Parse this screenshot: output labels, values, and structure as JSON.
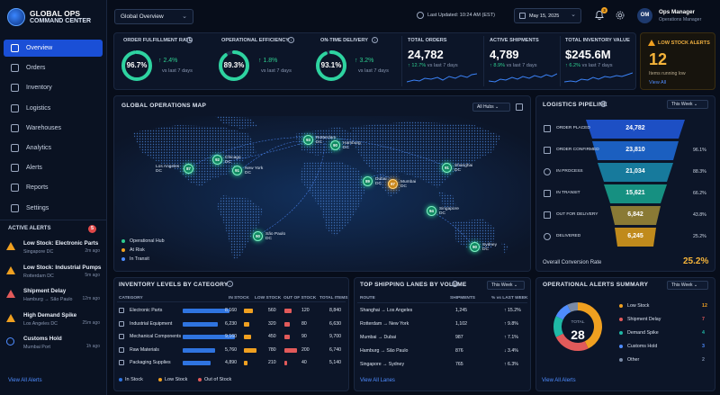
{
  "brand": {
    "line1": "GLOBAL OPS",
    "line2": "COMMAND CENTER"
  },
  "nav": [
    {
      "label": "Overview",
      "icon": "grid-icon"
    },
    {
      "label": "Orders",
      "icon": "box-icon"
    },
    {
      "label": "Inventory",
      "icon": "boxes-icon"
    },
    {
      "label": "Logistics",
      "icon": "route-icon"
    },
    {
      "label": "Warehouses",
      "icon": "warehouse-icon"
    },
    {
      "label": "Analytics",
      "icon": "chart-icon"
    },
    {
      "label": "Alerts",
      "icon": "bell-icon"
    },
    {
      "label": "Reports",
      "icon": "report-icon"
    },
    {
      "label": "Settings",
      "icon": "gear-icon"
    }
  ],
  "active_alerts": {
    "title": "ACTIVE ALERTS",
    "count": "5",
    "items": [
      {
        "title": "Low Stock: Electronic Parts",
        "sub": "Singapore DC",
        "time": "2m ago",
        "color": "#f0a020"
      },
      {
        "title": "Low Stock: Industrial Pumps",
        "sub": "Rotterdam DC",
        "time": "5m ago",
        "color": "#f0a020"
      },
      {
        "title": "Shipment Delay",
        "sub": "Hamburg → São Paulo",
        "time": "12m ago",
        "color": "#e25a5a"
      },
      {
        "title": "High Demand Spike",
        "sub": "Los Angeles DC",
        "time": "25m ago",
        "color": "#f0a020"
      },
      {
        "title": "Customs Hold",
        "sub": "Mumbai Port",
        "time": "1h ago",
        "color": "#4e8cff"
      }
    ],
    "view_all": "View All Alerts"
  },
  "header": {
    "view_select": "Global Overview",
    "last_updated": "Last Updated: 10:24 AM (EST)",
    "date": "May 15, 2025",
    "notif_count": "3",
    "user_initials": "OM",
    "user_name": "Ops Manager",
    "user_role": "Operations Manager"
  },
  "kpis": {
    "fulfillment": {
      "label": "ORDER FULFILLMENT RATE",
      "value": "96.7%",
      "pct": 96.7,
      "delta": "2.4%",
      "note": "vs last 7 days"
    },
    "efficiency": {
      "label": "OPERATIONAL EFFICIENCY",
      "value": "89.3%",
      "pct": 89.3,
      "delta": "1.8%",
      "note": "vs last 7 days"
    },
    "ontime": {
      "label": "ON-TIME DELIVERY",
      "value": "93.1%",
      "pct": 93.1,
      "delta": "3.2%",
      "note": "vs last 7 days"
    },
    "orders": {
      "label": "TOTAL ORDERS",
      "value": "24,782",
      "delta": "12.7%",
      "note": "vs last 7 days"
    },
    "shipments": {
      "label": "ACTIVE SHIPMENTS",
      "value": "4,789",
      "delta": "8.9%",
      "note": "vs last 7 days"
    },
    "inventory": {
      "label": "TOTAL INVENTORY VALUE",
      "value": "$245.6M",
      "delta": "6.2%",
      "note": "vs last 7 days"
    },
    "low_stock": {
      "label": "LOW STOCK ALERTS",
      "value": "12",
      "note": "Items running low",
      "link": "View All"
    }
  },
  "map": {
    "title": "GLOBAL OPERATIONS MAP",
    "filter": "All Hubs",
    "hubs": [
      {
        "name": "Los Angeles\nDC",
        "score": "87",
        "status": "ok"
      },
      {
        "name": "Chicago\nDC",
        "score": "92",
        "status": "ok"
      },
      {
        "name": "New York\nDC",
        "score": "91",
        "status": "ok"
      },
      {
        "name": "Rotterdam\nDC",
        "score": "93",
        "status": "ok"
      },
      {
        "name": "Hamburg\nDC",
        "score": "90",
        "status": "ok"
      },
      {
        "name": "Dubai\nDC",
        "score": "89",
        "status": "ok"
      },
      {
        "name": "Mumbai\nDC",
        "score": "87",
        "status": "risk"
      },
      {
        "name": "Shanghai\nDC",
        "score": "91",
        "status": "ok"
      },
      {
        "name": "Singapore\nDC",
        "score": "94",
        "status": "ok"
      },
      {
        "name": "São Paulo\nDC",
        "score": "90",
        "status": "ok"
      },
      {
        "name": "Sydney\nDC",
        "score": "90",
        "status": "ok"
      }
    ],
    "legend": [
      {
        "label": "Operational Hub",
        "color": "#2ecc8f"
      },
      {
        "label": "At Risk",
        "color": "#f0a020"
      },
      {
        "label": "In Transit",
        "color": "#4e8cff"
      }
    ]
  },
  "pipeline": {
    "title": "LOGISTICS PIPELINE",
    "period": "This Week",
    "stages": [
      {
        "label": "ORDER PLACED",
        "value": "24,782",
        "pct": "",
        "color": "#1d4fc4",
        "icon": "cart-icon"
      },
      {
        "label": "ORDER CONFIRMED",
        "value": "23,810",
        "pct": "96.1%",
        "color": "#1b5fc0",
        "icon": "doc-check-icon"
      },
      {
        "label": "IN PROCESS",
        "value": "21,034",
        "pct": "88.3%",
        "color": "#177a9c",
        "icon": "gear-icon"
      },
      {
        "label": "IN TRANSIT",
        "value": "15,621",
        "pct": "66.2%",
        "color": "#169081",
        "icon": "truck-icon"
      },
      {
        "label": "OUT FOR DELIVERY",
        "value": "6,842",
        "pct": "43.8%",
        "color": "#8a7a35",
        "icon": "package-icon"
      },
      {
        "label": "DELIVERED",
        "value": "6,245",
        "pct": "25.2%",
        "color": "#c08a1c",
        "icon": "check-circle-icon"
      }
    ],
    "conversion_label": "Overall Conversion Rate",
    "conversion_value": "25.2%"
  },
  "inventory": {
    "title": "INVENTORY LEVELS BY CATEGORY",
    "headers": [
      "CATEGORY",
      "IN STOCK",
      "LOW STOCK",
      "OUT OF STOCK",
      "TOTAL ITEMS"
    ],
    "rows": [
      {
        "category": "Electronic Parts",
        "in": "8,160",
        "low": "560",
        "out": "120",
        "total": "8,840",
        "in_v": 8160,
        "low_v": 560,
        "out_v": 120
      },
      {
        "category": "Industrial Equipment",
        "in": "6,230",
        "low": "320",
        "out": "80",
        "total": "6,630",
        "in_v": 6230,
        "low_v": 320,
        "out_v": 80
      },
      {
        "category": "Mechanical Components",
        "in": "9,160",
        "low": "450",
        "out": "90",
        "total": "9,700",
        "in_v": 9160,
        "low_v": 450,
        "out_v": 90
      },
      {
        "category": "Raw Materials",
        "in": "5,760",
        "low": "780",
        "out": "200",
        "total": "6,740",
        "in_v": 5760,
        "low_v": 780,
        "out_v": 200
      },
      {
        "category": "Packaging Supplies",
        "in": "4,890",
        "low": "210",
        "out": "40",
        "total": "5,140",
        "in_v": 4890,
        "low_v": 210,
        "out_v": 40
      }
    ],
    "legend": [
      {
        "label": "In Stock",
        "color": "#2f74e0"
      },
      {
        "label": "Low Stock",
        "color": "#f0a020"
      },
      {
        "label": "Out of Stock",
        "color": "#e25a5a"
      }
    ]
  },
  "lanes": {
    "title": "TOP SHIPPING LANES BY VOLUME",
    "period": "This Week",
    "headers": [
      "ROUTE",
      "SHIPMENTS",
      "% vs LAST WEEK"
    ],
    "rows": [
      {
        "from": "Shanghai",
        "to": "Los Angeles",
        "shipments": "1,245",
        "change": "15.2%",
        "up": true
      },
      {
        "from": "Rotterdam",
        "to": "New York",
        "shipments": "1,102",
        "change": "9.8%",
        "up": true
      },
      {
        "from": "Mumbai",
        "to": "Dubai",
        "shipments": "987",
        "change": "7.1%",
        "up": true
      },
      {
        "from": "Hamburg",
        "to": "São Paulo",
        "shipments": "876",
        "change": "3.4%",
        "up": false
      },
      {
        "from": "Singapore",
        "to": "Sydney",
        "shipments": "765",
        "change": "6.3%",
        "up": true
      }
    ],
    "view_all": "View All Lanes"
  },
  "ops_alerts": {
    "title": "OPERATIONAL ALERTS SUMMARY",
    "period": "This Week",
    "total_label": "TOTAL",
    "total": "28",
    "chart_data": {
      "type": "pie",
      "categories": [
        "Low Stock",
        "Shipment Delay",
        "Demand Spike",
        "Customs Hold",
        "Other"
      ],
      "values": [
        12,
        7,
        4,
        3,
        2
      ],
      "colors": [
        "#f0a020",
        "#e25a5a",
        "#1fb8a6",
        "#4e8cff",
        "#7a8aa6"
      ]
    },
    "view_all": "View All Alerts"
  }
}
